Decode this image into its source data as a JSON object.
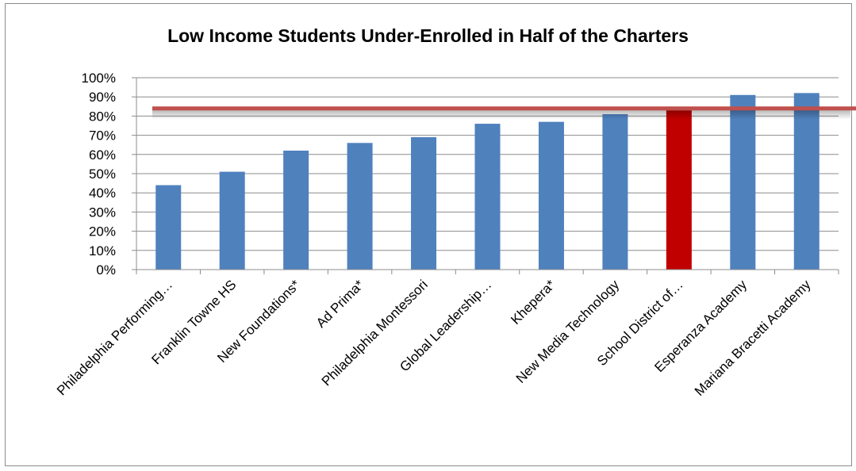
{
  "chart_data": {
    "type": "bar",
    "title": "Low Income Students Under-Enrolled in Half of the Charters",
    "xlabel": "",
    "ylabel": "",
    "categories": [
      "Philadelphia Performing…",
      "Franklin Towne HS",
      "New Foundations*",
      "Ad Prima*",
      "Philadelphia Montessori",
      "Global Leadership…",
      "Khepera*",
      "New Media Technology",
      "School District of…",
      "Esperanza Academy",
      "Mariana Bracetti Academy"
    ],
    "values": [
      44,
      51,
      62,
      66,
      69,
      76,
      77,
      81,
      83,
      91,
      92
    ],
    "highlight_index": 8,
    "reference_line": 84,
    "ylim": [
      0,
      100
    ],
    "yticks": [
      "0%",
      "10%",
      "20%",
      "30%",
      "40%",
      "50%",
      "60%",
      "70%",
      "80%",
      "90%",
      "100%"
    ],
    "gridlines": true,
    "legend": "none",
    "colors": {
      "bar": "#4f81bd",
      "highlight": "#c00000",
      "reference_line": "#c0504d",
      "grid": "#8c8c8c",
      "axis": "#8c8c8c"
    }
  }
}
